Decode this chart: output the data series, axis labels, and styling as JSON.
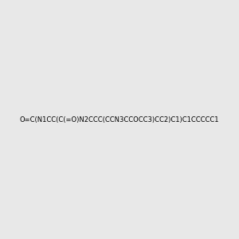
{
  "smiles": "O=C(N1CC(C(=O)N2CCC(CCN3CCOCC3)CC2)C1)C1CCCCC1",
  "title": "",
  "background_color": "#e8e8e8",
  "bond_color": "#000000",
  "atom_colors": {
    "N": "#0000ff",
    "O": "#ff0000",
    "C": "#000000"
  },
  "figsize": [
    3.0,
    3.0
  ],
  "dpi": 100
}
